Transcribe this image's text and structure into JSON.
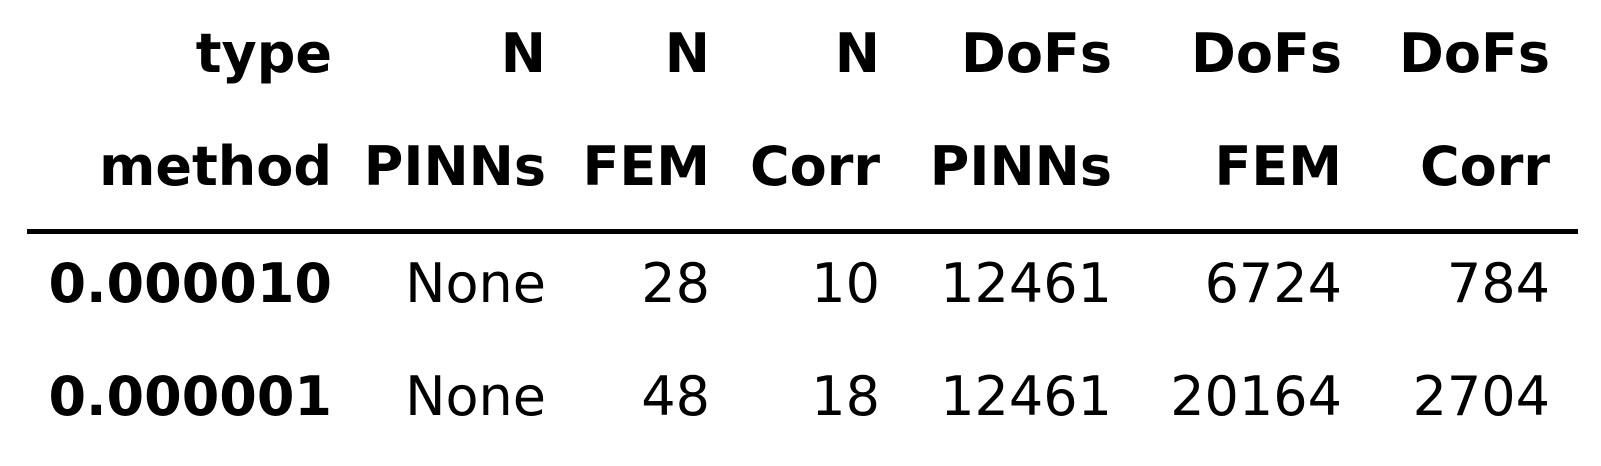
{
  "table": {
    "header_top": [
      "type",
      "N",
      "N",
      "N",
      "DoFs",
      "DoFs",
      "DoFs"
    ],
    "header_bottom": [
      "method",
      "PINNs",
      "FEM",
      "Corr",
      "PINNs",
      "FEM",
      "Corr"
    ],
    "rows": [
      {
        "index": "0.000010",
        "cells": [
          "None",
          "28",
          "10",
          "12461",
          "6724",
          "784"
        ]
      },
      {
        "index": "0.000001",
        "cells": [
          "None",
          "48",
          "18",
          "12461",
          "20164",
          "2704"
        ]
      }
    ]
  }
}
